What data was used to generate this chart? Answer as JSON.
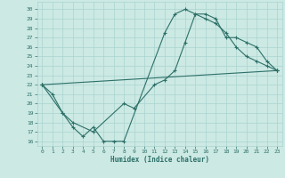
{
  "xlabel": "Humidex (Indice chaleur)",
  "bg_color": "#cce9e4",
  "line_color": "#2d7068",
  "grid_color": "#aad4cf",
  "xlim": [
    -0.5,
    23.5
  ],
  "ylim": [
    15.5,
    30.8
  ],
  "xticks": [
    0,
    1,
    2,
    3,
    4,
    5,
    6,
    7,
    8,
    9,
    10,
    11,
    12,
    13,
    14,
    15,
    16,
    17,
    18,
    19,
    20,
    21,
    22,
    23
  ],
  "yticks": [
    16,
    17,
    18,
    19,
    20,
    21,
    22,
    23,
    24,
    25,
    26,
    27,
    28,
    29,
    30
  ],
  "line1_x": [
    0,
    1,
    2,
    3,
    4,
    5,
    6,
    7,
    8,
    12,
    13,
    14,
    15,
    16,
    17,
    18,
    19,
    20,
    21,
    22,
    23
  ],
  "line1_y": [
    22,
    21,
    19,
    17.5,
    16.5,
    17.5,
    16,
    16,
    16,
    27.5,
    29.5,
    30,
    29.5,
    29,
    28.5,
    27.5,
    26,
    25,
    24.5,
    24,
    23.5
  ],
  "line2_x": [
    0,
    2,
    3,
    5,
    8,
    9,
    11,
    12,
    13,
    14,
    15,
    16,
    17,
    18,
    19,
    20,
    21,
    22,
    23
  ],
  "line2_y": [
    22,
    19,
    18,
    17,
    20,
    19.5,
    22,
    22.5,
    23.5,
    26.5,
    29.5,
    29.5,
    29,
    27,
    27,
    26.5,
    26,
    24.5,
    23.5
  ],
  "line3_x": [
    0,
    23
  ],
  "line3_y": [
    22,
    23.5
  ],
  "lw": 0.8,
  "ms": 3.0
}
